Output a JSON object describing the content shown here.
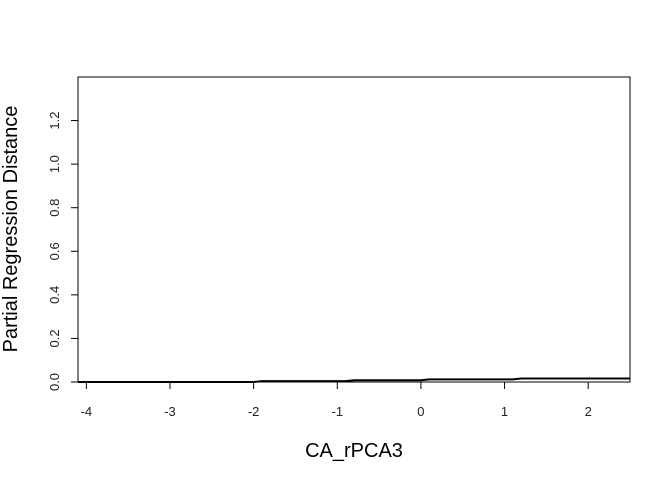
{
  "chart_data": {
    "type": "line",
    "title": "",
    "xlabel": "CA_rPCA3",
    "ylabel": "Partial Regression Distance",
    "xlim": [
      -4.1,
      2.5
    ],
    "ylim": [
      0.0,
      1.4
    ],
    "xticks": [
      -4,
      -3,
      -2,
      -1,
      0,
      1,
      2
    ],
    "yticks": [
      0.0,
      0.2,
      0.4,
      0.6,
      0.8,
      1.0,
      1.2
    ],
    "grid": false,
    "legend": "none",
    "series": [
      {
        "color": "#000000",
        "x": [
          -4.1,
          -2.0,
          -1.9,
          -0.9,
          -0.8,
          0.0,
          0.1,
          1.1,
          1.2,
          2.5
        ],
        "y": [
          0.0,
          0.0,
          0.004,
          0.004,
          0.008,
          0.008,
          0.012,
          0.012,
          0.016,
          0.016
        ]
      }
    ]
  }
}
